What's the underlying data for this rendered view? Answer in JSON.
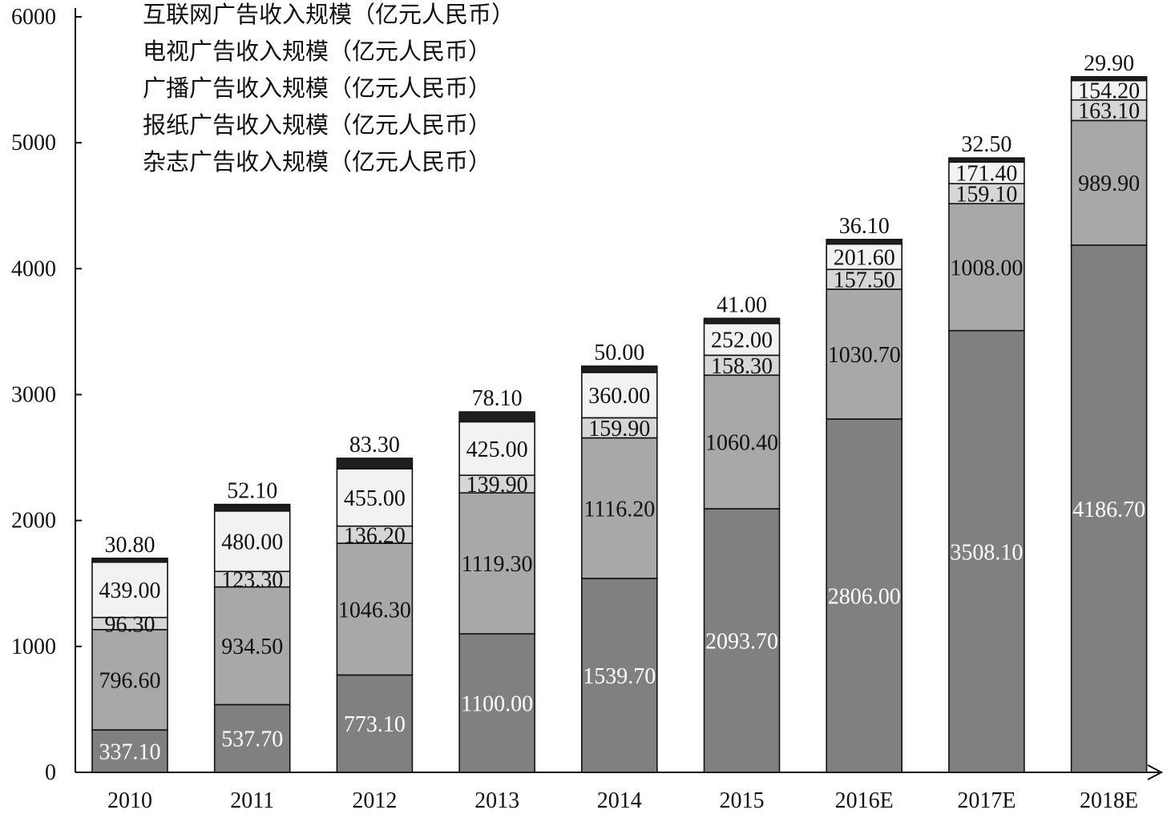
{
  "chart_data": {
    "type": "bar",
    "stacked": true,
    "categories": [
      "2010",
      "2011",
      "2012",
      "2013",
      "2014",
      "2015",
      "2016E",
      "2017E",
      "2018E"
    ],
    "series": [
      {
        "name": "互联网广告收入规模（亿元人民币）",
        "color": "#808080",
        "label_color": "#ffffff",
        "values": [
          337.1,
          537.7,
          773.1,
          1100.0,
          1539.7,
          2093.7,
          2806.0,
          3508.1,
          4186.7
        ]
      },
      {
        "name": "电视广告收入规模（亿元人民币）",
        "color": "#a8a8a8",
        "label_color": "#111111",
        "values": [
          796.6,
          934.5,
          1046.3,
          1119.3,
          1116.2,
          1060.4,
          1030.7,
          1008.0,
          989.9
        ]
      },
      {
        "name": "广播广告收入规模（亿元人民币）",
        "color": "#d6d6d6",
        "label_color": "#111111",
        "values": [
          96.3,
          123.3,
          136.2,
          139.9,
          159.9,
          158.3,
          157.5,
          159.1,
          163.1
        ]
      },
      {
        "name": "报纸广告收入规模（亿元人民币）",
        "color": "#f2f2f2",
        "label_color": "#111111",
        "values": [
          439.0,
          480.0,
          455.0,
          425.0,
          360.0,
          252.0,
          201.6,
          171.4,
          154.2
        ]
      },
      {
        "name": "杂志广告收入规模（亿元人民币）",
        "color": "#1e1e1e",
        "label_color": "#111111",
        "values": [
          30.8,
          52.1,
          83.3,
          78.1,
          50.0,
          41.0,
          36.1,
          32.5,
          29.9
        ]
      }
    ],
    "value_labels": [
      [
        "337.10",
        "537.70",
        "773.10",
        "1100.00",
        "1539.70",
        "2093.70",
        "2806.00",
        "3508.10",
        "4186.70"
      ],
      [
        "796.60",
        "934.50",
        "1046.30",
        "1119.30",
        "1116.20",
        "1060.40",
        "1030.70",
        "1008.00",
        "989.90"
      ],
      [
        "96.30",
        "123.30",
        "136.20",
        "139.90",
        "159.90",
        "158.30",
        "157.50",
        "159.10",
        "163.10"
      ],
      [
        "439.00",
        "480.00",
        "455.00",
        "425.00",
        "360.00",
        "252.00",
        "201.60",
        "171.40",
        "154.20"
      ],
      [
        "30.80",
        "52.10",
        "83.30",
        "78.10",
        "50.00",
        "41.00",
        "36.10",
        "32.50",
        "29.90"
      ]
    ],
    "yticks": [
      "0",
      "1000",
      "2000",
      "3000",
      "4000",
      "5000",
      "6000"
    ],
    "ylim": [
      0,
      6000
    ],
    "grid": false,
    "legend_position": "top-left"
  }
}
